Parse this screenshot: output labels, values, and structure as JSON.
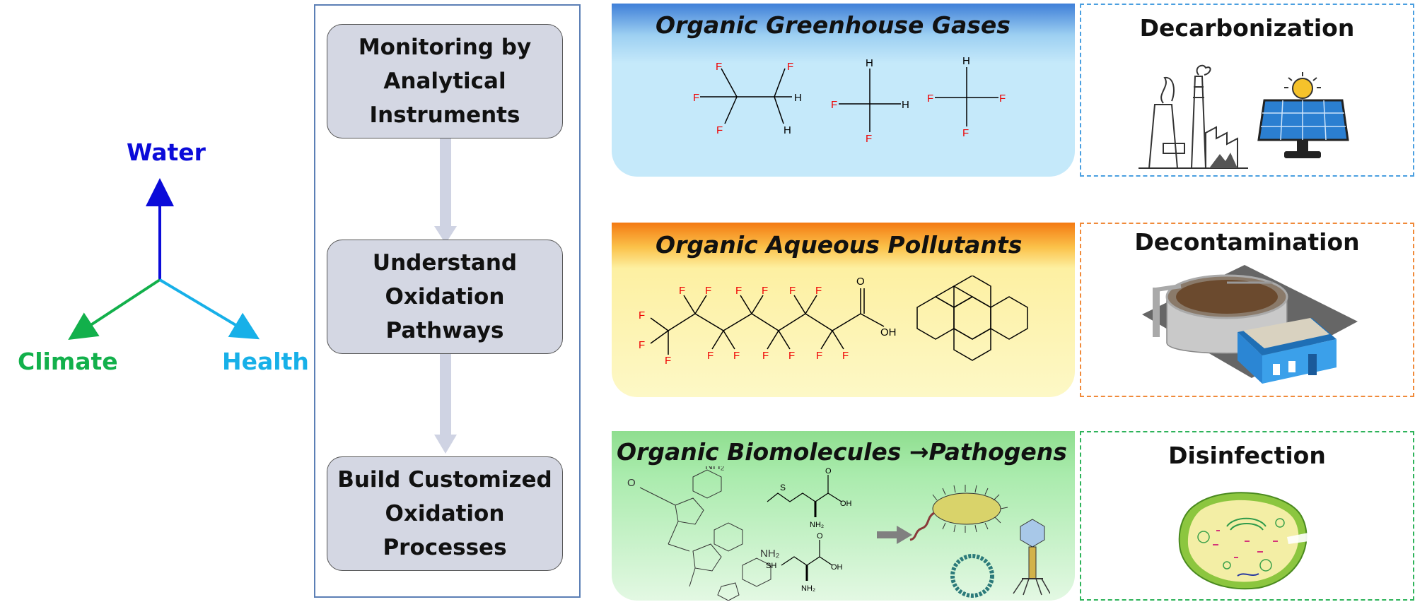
{
  "axes": {
    "water": "Water",
    "climate": "Climate",
    "health": "Health",
    "colors": {
      "water": "#0b0bd9",
      "climate": "#12b04b",
      "health": "#17b0e8"
    }
  },
  "flow": {
    "steps": [
      {
        "label": "Monitoring by\nAnalytical\nInstruments"
      },
      {
        "label": "Understand\nOxidation\nPathways"
      },
      {
        "label": "Build Customized\nOxidation\nProcesses"
      }
    ]
  },
  "categories": [
    {
      "title": "Organic Greenhouse Gases"
    },
    {
      "title": "Organic Aqueous Pollutants"
    },
    {
      "title": "Organic Biomolecules",
      "arrow": "→",
      "title_suffix": "Pathogens"
    }
  ],
  "outcomes": [
    {
      "title": "Decarbonization",
      "border_color": "#4a9fe0"
    },
    {
      "title": "Decontamination",
      "border_color": "#f08a3a"
    },
    {
      "title": "Disinfection",
      "border_color": "#2eb35a"
    }
  ],
  "molecules": {
    "atoms": {
      "F": "F",
      "H": "H",
      "O": "O",
      "OH": "OH",
      "SH": "SH",
      "NH2": "NH₂"
    }
  },
  "icons": [
    "factory-icon",
    "solar-panel-icon",
    "water-treatment-plant-icon",
    "bacterium-icon",
    "virus-icon",
    "bacterial-cell-icon"
  ]
}
